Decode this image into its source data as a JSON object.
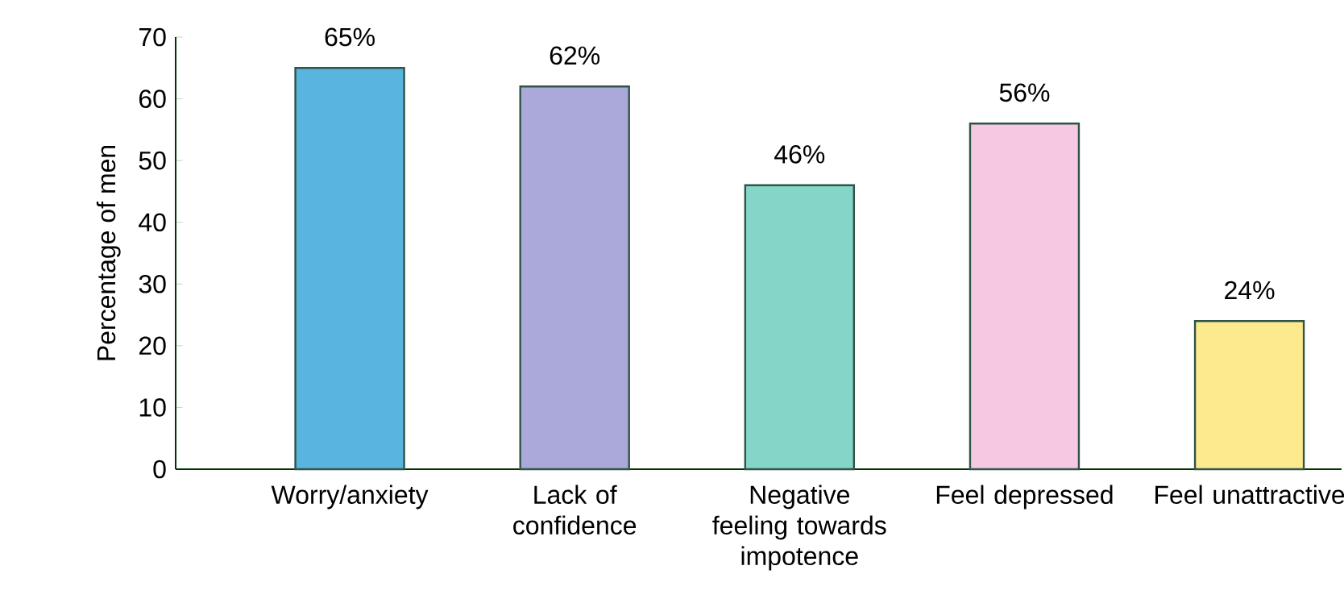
{
  "chart_data": {
    "type": "bar",
    "ylabel": "Percentage of men",
    "categories": [
      "Worry/anxiety",
      "Lack of confidence",
      "Negative feeling towards impotence",
      "Feel depressed",
      "Feel unattractive"
    ],
    "values": [
      65,
      62,
      46,
      56,
      24
    ],
    "colors": [
      "#5ab4e0",
      "#aaa9d9",
      "#86d5c9",
      "#f6c8e1",
      "#fde98e"
    ],
    "value_labels": [
      "65%",
      "62%",
      "46%",
      "56%",
      "24%"
    ],
    "ylim": [
      0,
      70
    ],
    "yticks": [
      0,
      10,
      20,
      30,
      40,
      50,
      60,
      70
    ],
    "grid": false
  }
}
